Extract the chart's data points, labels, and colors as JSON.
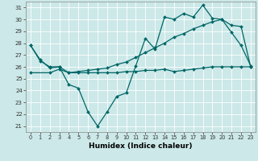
{
  "xlabel": "Humidex (Indice chaleur)",
  "bg_color": "#cce8e8",
  "grid_color": "#b0d4d4",
  "line_color": "#006666",
  "xlim": [
    -0.5,
    23.5
  ],
  "ylim": [
    20.5,
    31.5
  ],
  "xticks": [
    0,
    1,
    2,
    3,
    4,
    5,
    6,
    7,
    8,
    9,
    10,
    11,
    12,
    13,
    14,
    15,
    16,
    17,
    18,
    19,
    20,
    21,
    22,
    23
  ],
  "yticks": [
    21,
    22,
    23,
    24,
    25,
    26,
    27,
    28,
    29,
    30,
    31
  ],
  "line1_x": [
    0,
    1,
    2,
    3,
    4,
    5,
    6,
    7,
    8,
    9,
    10,
    11,
    12,
    13,
    14,
    15,
    16,
    17,
    18,
    19,
    20,
    21,
    22,
    23
  ],
  "line1_y": [
    27.8,
    26.6,
    25.9,
    26.0,
    24.5,
    24.2,
    22.2,
    21.0,
    22.2,
    23.5,
    23.8,
    26.1,
    28.4,
    27.5,
    30.2,
    30.0,
    30.5,
    30.2,
    31.2,
    30.1,
    30.0,
    28.9,
    27.8,
    26.1
  ],
  "line2_x": [
    0,
    1,
    2,
    3,
    4,
    5,
    6,
    7,
    8,
    9,
    10,
    11,
    12,
    13,
    14,
    15,
    16,
    17,
    18,
    19,
    20,
    21,
    22,
    23
  ],
  "line2_y": [
    27.8,
    26.5,
    26.0,
    26.0,
    25.5,
    25.6,
    25.7,
    25.8,
    25.9,
    26.2,
    26.4,
    26.8,
    27.2,
    27.6,
    28.0,
    28.5,
    28.8,
    29.2,
    29.5,
    29.8,
    30.0,
    29.5,
    29.4,
    26.0
  ],
  "line3_x": [
    0,
    2,
    3,
    4,
    5,
    6,
    7,
    8,
    9,
    10,
    11,
    12,
    13,
    14,
    15,
    16,
    17,
    18,
    19,
    20,
    21,
    22,
    23
  ],
  "line3_y": [
    25.5,
    25.5,
    25.8,
    25.5,
    25.5,
    25.5,
    25.5,
    25.5,
    25.5,
    25.6,
    25.6,
    25.7,
    25.7,
    25.8,
    25.6,
    25.7,
    25.8,
    25.9,
    26.0,
    26.0,
    26.0,
    26.0,
    26.0
  ]
}
